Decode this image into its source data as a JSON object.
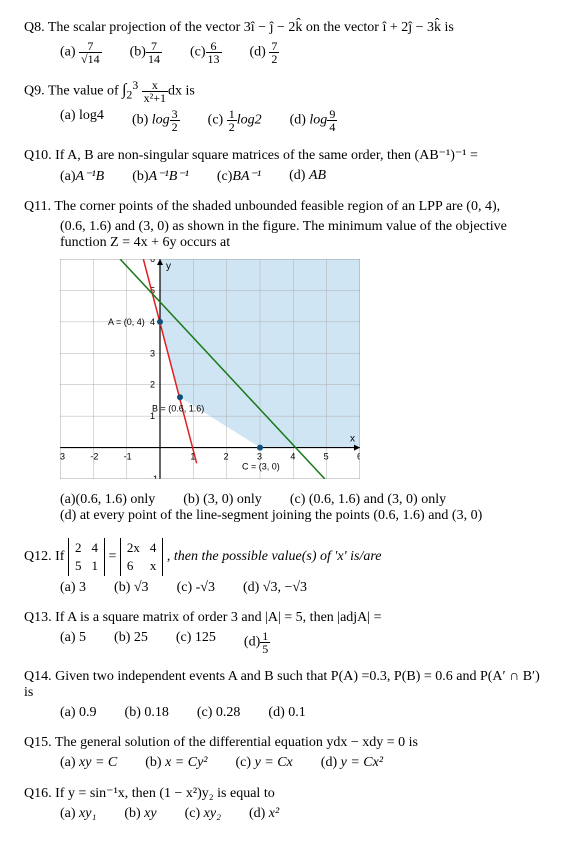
{
  "q8": {
    "label": "Q8.",
    "text_pre": "The scalar projection of the vector 3",
    "vec1": "î − ĵ − 2k̂",
    "text_mid": " on the vector ",
    "vec2": "î + 2ĵ − 3k̂",
    "text_post": "  is",
    "opts": {
      "a": "7",
      "a_den": "√14",
      "b": "7",
      "b_den": "14",
      "c": "6",
      "c_den": "13",
      "d": "7",
      "d_den": "2"
    }
  },
  "q9": {
    "label": "Q9.",
    "pre": "The value of ",
    "int_lo": "2",
    "int_hi": "3",
    "inner_num": "x",
    "inner_den": "x²+1",
    "post": "dx is",
    "a": "log4",
    "b_pre": "log",
    "b_num": "3",
    "b_den": "2",
    "c_pre_num": "1",
    "c_pre_den": "2",
    "c_post": "log2",
    "d_pre": "log",
    "d_num": "9",
    "d_den": "4"
  },
  "q10": {
    "label": "Q10.",
    "text": "If A, B are non-singular square matrices of the same order, then (AB⁻¹)⁻¹ =",
    "a": "A⁻¹B",
    "b": "A⁻¹B⁻¹",
    "c": "BA⁻¹",
    "d": "AB"
  },
  "q11": {
    "label": "Q11.",
    "l1": "The corner points of the shaded unbounded feasible region of an LPP are (0, 4),",
    "l2": "(0.6, 1.6) and (3, 0) as shown in the figure. The minimum value of the objective",
    "l3": "function Z = 4x + 6y occurs at",
    "a": "(0.6, 1.6) only",
    "b": "(3, 0) only",
    "c": "(0.6, 1.6) and (3, 0) only",
    "d": "at every point of the line-segment joining the points (0.6, 1.6) and (3, 0)"
  },
  "q12": {
    "label": "Q12.",
    "pre": "If ",
    "m1": [
      [
        "2",
        "4"
      ],
      [
        "5",
        "1"
      ]
    ],
    "eq": " = ",
    "m2": [
      [
        "2x",
        "4"
      ],
      [
        "6",
        "x"
      ]
    ],
    "post": ", then the possible value(s) of 'x' is/are",
    "a": "3",
    "b": "√3",
    "c": "-√3",
    "d": "√3, −√3"
  },
  "q13": {
    "label": "Q13.",
    "text": "If A is a square matrix of order 3 and |A| = 5, then |adjA| =",
    "a": "5",
    "b": "25",
    "c": "125",
    "d_num": "1",
    "d_den": "5"
  },
  "q14": {
    "label": "Q14.",
    "text": "Given two independent events A and B such that P(A) =0.3, P(B) = 0.6 and P(A′ ∩ B′) is",
    "a": "0.9",
    "b": "0.18",
    "c": "0.28",
    "d": "0.1"
  },
  "q15": {
    "label": "Q15.",
    "text": "The general solution of the differential equation ydx − xdy = 0 is",
    "a": "xy = C",
    "b": "x = Cy²",
    "c": "y = Cx",
    "d": "y = Cx²"
  },
  "q16": {
    "label": "Q16.",
    "text": "If y = sin⁻¹x, then (1 − x²)y₂ is equal to",
    "a": "xy₁",
    "b": "xy",
    "c": "xy₂",
    "d": "x²"
  },
  "chart": {
    "bg": "#cfe5f3",
    "grid": "#b0b0b0",
    "axis": "#000",
    "lineA_color": "#e02020",
    "lineB_color": "#1a7a1a",
    "A_label": "A = (0, 4)",
    "B_label": "B = (0.6, 1.6)",
    "C_label": "C = (3, 0)",
    "x_label": "x",
    "y_label": "y",
    "xmin": -3,
    "xmax": 6,
    "ymin": -1,
    "ymax": 6,
    "pts": {
      "A": [
        0,
        4
      ],
      "B": [
        0.6,
        1.6
      ],
      "C": [
        3,
        0
      ]
    },
    "lineA": [
      [
        -0.5,
        6
      ],
      [
        1.1,
        -0.5
      ]
    ],
    "lineB": [
      [
        -1.2,
        6
      ],
      [
        6,
        -2.2
      ]
    ]
  },
  "ol": {
    "a": "(a)",
    "b": "(b)",
    "c": "(c)",
    "d": "(d)"
  }
}
